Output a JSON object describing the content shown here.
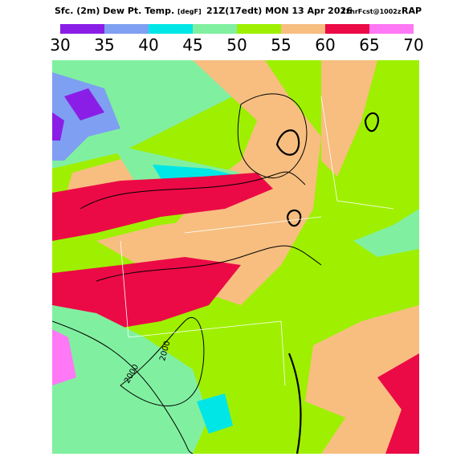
{
  "header": {
    "field": "Sfc. (2m) Dew Pt. Temp.",
    "units": "[degF]",
    "valid": "21Z(17edt) MON 13 Apr 2026",
    "forecast": "12hrFcst@1002z",
    "model": "RAP"
  },
  "colorbar": {
    "ticks": [
      30,
      35,
      40,
      45,
      50,
      55,
      60,
      65,
      70
    ],
    "colors": [
      "#8a1ee6",
      "#7f9ff2",
      "#00e6e6",
      "#80f0a0",
      "#9ef000",
      "#f7be80",
      "#eb0a46",
      "#ff78f5"
    ]
  },
  "contour_labels": [
    "2000",
    "2000"
  ]
}
